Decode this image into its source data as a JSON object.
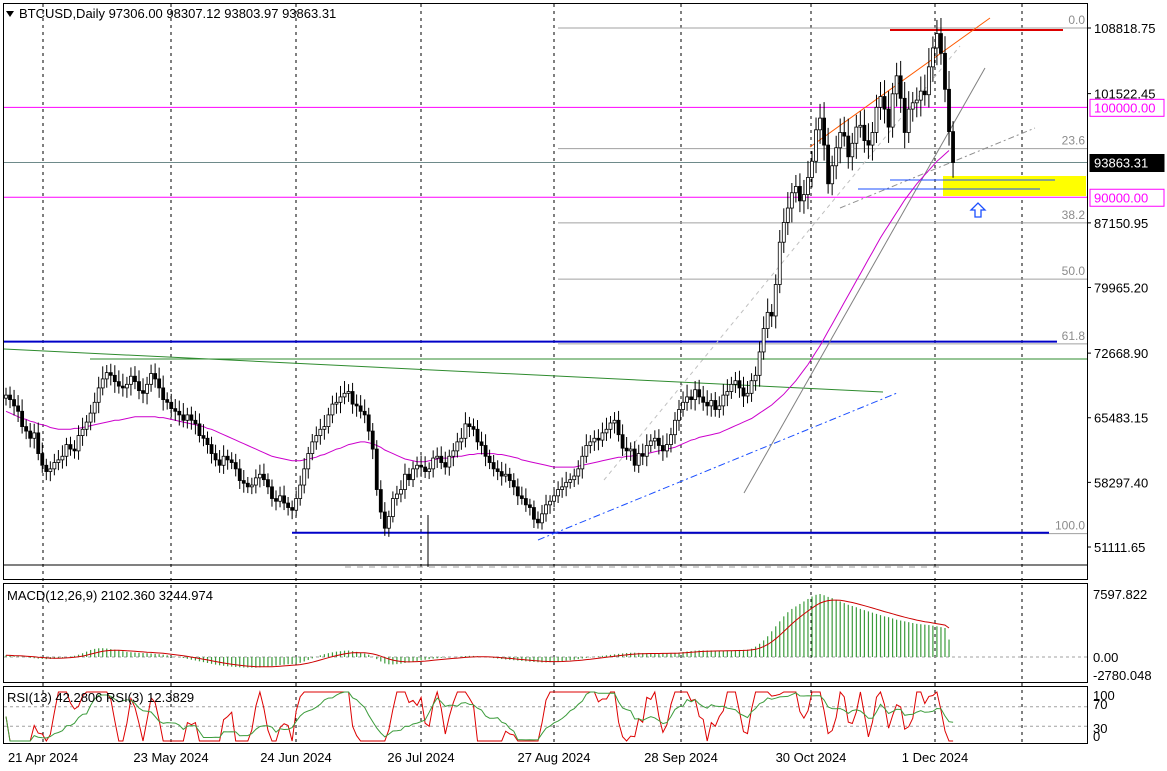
{
  "header": {
    "symbol": "BTCUSD",
    "timeframe": "Daily",
    "ohlc": "97306.00 98307.12 93803.97 93863.31",
    "title_line": "BTCUSD,Daily  97306.00 98307.12 93803.97 93863.31"
  },
  "chart_data": [
    {
      "type": "candlestick",
      "panel": "price",
      "y_ticks": [
        "108818.75",
        "101522.45",
        "87150.95",
        "79965.20",
        "72668.90",
        "65483.15",
        "58297.40",
        "51111.65"
      ],
      "price_tags": [
        {
          "value": "100000.00",
          "color": "#ff00ff",
          "text_color": "#ff00ff"
        },
        {
          "value": "93863.31",
          "color": "#000000",
          "text_color": "#ffffff"
        },
        {
          "value": "90000.00",
          "color": "#ff00ff",
          "text_color": "#ff00ff"
        }
      ],
      "fib_labels": [
        "0.0",
        "23.6",
        "38.2",
        "50.0",
        "61.8",
        "100.0"
      ],
      "fib_levels": [
        {
          "ratio": "0.0",
          "price": 108818.75
        },
        {
          "ratio": "23.6",
          "price": 95400
        },
        {
          "ratio": "38.2",
          "price": 87150
        },
        {
          "ratio": "50.0",
          "price": 80900
        },
        {
          "ratio": "61.8",
          "price": 73700
        },
        {
          "ratio": "100.0",
          "price": 52600
        }
      ],
      "horizontal_levels": [
        {
          "price": 100000,
          "color": "#ff00ff"
        },
        {
          "price": 90000,
          "color": "#ff00ff"
        },
        {
          "price": 108818.75,
          "color": "#dd0000"
        },
        {
          "price": 73950,
          "color": "#0000c8"
        },
        {
          "price": 52700,
          "color": "#0000c8"
        }
      ],
      "close_series": [
        68000,
        67500,
        66800,
        66200,
        64500,
        64000,
        63200,
        63800,
        61500,
        60200,
        59500,
        59800,
        60500,
        60800,
        61200,
        62500,
        62000,
        61800,
        63500,
        64200,
        65000,
        66000,
        67200,
        68800,
        69800,
        70500,
        70200,
        69500,
        69000,
        68800,
        69200,
        70100,
        69500,
        68500,
        68200,
        69200,
        70400,
        69800,
        68800,
        67500,
        67200,
        66500,
        66200,
        65800,
        65200,
        65800,
        65200,
        64800,
        63500,
        63200,
        62500,
        61500,
        60800,
        60200,
        61200,
        60800,
        60500,
        59800,
        58500,
        58200,
        57800,
        58000,
        58800,
        59200,
        58600,
        57800,
        56500,
        56200,
        56800,
        56000,
        55500,
        55200,
        56500,
        58000,
        59800,
        61500,
        62800,
        63500,
        64200,
        64500,
        65800,
        67000,
        67200,
        67800,
        68200,
        68400,
        67000,
        66800,
        66200,
        65800,
        64000,
        62000,
        57500,
        55000,
        53200,
        54500,
        56500,
        57000,
        57500,
        59200,
        58600,
        59800,
        60200,
        60000,
        59500,
        59800,
        61000,
        61200,
        60500,
        60000,
        61200,
        61800,
        62800,
        63200,
        64800,
        64500,
        64200,
        62800,
        62400,
        61200,
        60500,
        59800,
        59500,
        59000,
        59200,
        58500,
        57800,
        56800,
        56500,
        55800,
        55500,
        54200,
        53800,
        54800,
        55800,
        56200,
        56800,
        57500,
        57800,
        58300,
        58600,
        59000,
        59800,
        61200,
        62400,
        62800,
        63200,
        63000,
        63800,
        64200,
        64900,
        65200,
        63600,
        62100,
        61800,
        62000,
        60200,
        61500,
        61200,
        62400,
        62900,
        63200,
        62400,
        61800,
        62500,
        63600,
        65200,
        66400,
        67200,
        67800,
        67500,
        68600,
        67800,
        67200,
        66800,
        67400,
        66400,
        66800,
        68000,
        68400,
        69200,
        69600,
        68800,
        67900,
        68200,
        69600,
        70200,
        72800,
        75400,
        77200,
        76800,
        80300,
        85000,
        87200,
        88800,
        90500,
        91200,
        89600,
        90300,
        92200,
        94000,
        97500,
        98800,
        95800,
        91500,
        93500,
        95500,
        97200,
        96800,
        94500,
        96000,
        97800,
        98000,
        96300,
        95800,
        97200,
        100000,
        101200,
        99800,
        97800,
        101500,
        103500,
        101000,
        97200,
        99800,
        100500,
        100800,
        101800,
        101400,
        104500,
        106600,
        108200,
        106000,
        102000,
        97300,
        93863
      ],
      "sma_series": [
        66200,
        66000,
        65800,
        65600,
        65400,
        65300,
        65100,
        65000,
        64800,
        64700,
        64600,
        64400,
        64300,
        64200,
        64200,
        64200,
        64200,
        64300,
        64300,
        64400,
        64500,
        64600,
        64700,
        64800,
        64900,
        65000,
        65100,
        65200,
        65200,
        65300,
        65400,
        65500,
        65600,
        65600,
        65600,
        65600,
        65600,
        65600,
        65500,
        65500,
        65400,
        65300,
        65200,
        65100,
        65000,
        64900,
        64800,
        64700,
        64600,
        64500,
        64300,
        64200,
        64000,
        63800,
        63600,
        63400,
        63200,
        63000,
        62800,
        62600,
        62400,
        62200,
        62000,
        61800,
        61600,
        61400,
        61200,
        61100,
        61000,
        60900,
        60800,
        60700,
        60700,
        60700,
        60800,
        60900,
        61000,
        61100,
        61300,
        61400,
        61600,
        61800,
        62000,
        62100,
        62300,
        62500,
        62600,
        62700,
        62800,
        62800,
        62700,
        62600,
        62400,
        62200,
        61900,
        61700,
        61500,
        61300,
        61100,
        60900,
        60800,
        60700,
        60600,
        60600,
        60600,
        60700,
        60800,
        60900,
        61000,
        61000,
        61000,
        61100,
        61200,
        61200,
        61300,
        61400,
        61400,
        61500,
        61500,
        61500,
        61500,
        61500,
        61400,
        61400,
        61300,
        61200,
        61100,
        61000,
        60800,
        60700,
        60600,
        60500,
        60400,
        60300,
        60200,
        60100,
        60000,
        60000,
        60000,
        60000,
        60000,
        60000,
        60100,
        60200,
        60300,
        60400,
        60500,
        60600,
        60700,
        60800,
        60900,
        61000,
        61100,
        61100,
        61200,
        61200,
        61300,
        61300,
        61400,
        61500,
        61600,
        61700,
        61800,
        61900,
        62000,
        62100,
        62200,
        62400,
        62600,
        62800,
        63000,
        63100,
        63300,
        63400,
        63500,
        63600,
        63700,
        63800,
        64000,
        64200,
        64400,
        64600,
        64800,
        65000,
        65200,
        65400,
        65700,
        66000,
        66300,
        66600,
        66900,
        67300,
        67700,
        68100,
        68600,
        69100,
        69600,
        70200,
        70800,
        71400,
        72100,
        72800,
        73500,
        74300,
        75100,
        75900,
        76700,
        77500,
        78300,
        79100,
        79900,
        80700,
        81500,
        82300,
        83100,
        83900,
        84700,
        85500,
        86200,
        86900,
        87600,
        88300,
        89000,
        89700,
        90300,
        90900,
        91500,
        92000,
        92500,
        93000,
        93500,
        94000,
        94400,
        94800,
        95200
      ]
    },
    {
      "type": "bar",
      "panel": "macd",
      "title": "MACD(12,26,9) 2102.360 3244.974",
      "y_ticks": [
        "7597.822",
        "0.00",
        "-2780.048"
      ],
      "series": [
        {
          "name": "MACD",
          "color": "#3c9c3c",
          "values": [
            200,
            150,
            100,
            80,
            40,
            -20,
            -100,
            -150,
            -200,
            -230,
            -260,
            -240,
            -200,
            -150,
            -90,
            -20,
            60,
            150,
            280,
            450,
            650,
            850,
            980,
            1050,
            1060,
            1020,
            950,
            880,
            800,
            700,
            620,
            580,
            540,
            500,
            480,
            460,
            420,
            380,
            340,
            280,
            200,
            120,
            40,
            -40,
            -120,
            -220,
            -330,
            -420,
            -520,
            -620,
            -720,
            -820,
            -920,
            -1000,
            -1060,
            -1120,
            -1160,
            -1200,
            -1240,
            -1270,
            -1280,
            -1290,
            -1290,
            -1250,
            -1200,
            -1160,
            -1100,
            -1040,
            -980,
            -930,
            -880,
            -860,
            -820,
            -700,
            -540,
            -360,
            -170,
            20,
            200,
            340,
            460,
            560,
            650,
            700,
            760,
            780,
            700,
            620,
            520,
            420,
            280,
            40,
            -260,
            -540,
            -780,
            -880,
            -900,
            -860,
            -800,
            -720,
            -650,
            -560,
            -470,
            -400,
            -330,
            -260,
            -200,
            -150,
            -100,
            -70,
            -40,
            -10,
            20,
            60,
            120,
            140,
            130,
            100,
            60,
            0,
            -60,
            -130,
            -190,
            -250,
            -300,
            -340,
            -390,
            -430,
            -470,
            -520,
            -560,
            -600,
            -630,
            -650,
            -650,
            -620,
            -580,
            -540,
            -490,
            -440,
            -390,
            -330,
            -260,
            -180,
            -100,
            -40,
            30,
            80,
            140,
            200,
            260,
            320,
            380,
            430,
            480,
            510,
            520,
            500,
            470,
            460,
            440,
            430,
            440,
            450,
            460,
            480,
            500,
            540,
            600,
            660,
            720,
            770,
            800,
            790,
            790,
            790,
            770,
            760,
            760,
            770,
            790,
            820,
            850,
            860,
            880,
            1000,
            1250,
            1600,
            2000,
            2500,
            3100,
            3700,
            4300,
            4900,
            5400,
            5800,
            6100,
            6400,
            6700,
            7000,
            7300,
            7500,
            7597,
            7450,
            7250,
            7100,
            6900,
            6700,
            6500,
            6300,
            6150,
            6000,
            5800,
            5650,
            5500,
            5350,
            5200,
            5050,
            4900,
            4800,
            4650,
            4500,
            4400,
            4300,
            4200,
            4100,
            4000,
            3950,
            3900,
            3850,
            3780,
            3700,
            3600,
            3500,
            2102
          ]
        },
        {
          "name": "Signal",
          "color": "#cc0000",
          "values": []
        }
      ]
    },
    {
      "type": "line",
      "panel": "rsi",
      "title": "RSI(13) 42.2806  RSI(3) 12.3829",
      "y_ticks": [
        "100",
        "70",
        "30",
        "0"
      ],
      "series": [
        {
          "name": "RSI(13)",
          "color": "#3c9c3c",
          "values": []
        },
        {
          "name": "RSI(3)",
          "color": "#dd0000",
          "values": []
        }
      ]
    }
  ],
  "x_axis": {
    "labels": [
      "21 Apr 2024",
      "23 May 2024",
      "24 Jun 2024",
      "26 Jul 2024",
      "27 Aug 2024",
      "28 Sep 2024",
      "30 Oct 2024",
      "1 Dec 2024"
    ]
  }
}
